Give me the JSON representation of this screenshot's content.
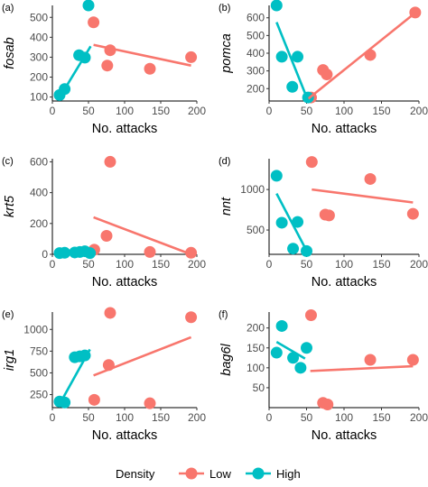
{
  "legend": {
    "title": "Density",
    "low_label": "Low",
    "high_label": "High"
  },
  "colors": {
    "low": "#F8766D",
    "high": "#00BFC4"
  },
  "chart_data": [
    {
      "type": "scatter",
      "tag": "(a)",
      "ylabel": "fosab",
      "xlabel": "No. attacks",
      "xlim": [
        0,
        200
      ],
      "xticks": [
        0,
        50,
        100,
        150,
        200
      ],
      "ylim": [
        80,
        560
      ],
      "yticks": [
        100,
        200,
        300,
        400,
        500
      ],
      "series": [
        {
          "name": "Low",
          "points": [
            [
              57,
              475
            ],
            [
              80,
              335
            ],
            [
              76,
              258
            ],
            [
              135,
              242
            ],
            [
              192,
              300
            ]
          ],
          "fit": [
            [
              57,
              362
            ],
            [
              192,
              258
            ]
          ]
        },
        {
          "name": "High",
          "points": [
            [
              10,
              110
            ],
            [
              17,
              140
            ],
            [
              37,
              310
            ],
            [
              45,
              298
            ],
            [
              50,
              560
            ]
          ],
          "fit": [
            [
              10,
              98
            ],
            [
              53,
              355
            ]
          ]
        }
      ]
    },
    {
      "type": "scatter",
      "tag": "(b)",
      "ylabel": "pomca",
      "xlabel": "No. attacks",
      "xlim": [
        0,
        200
      ],
      "xticks": [
        0,
        50,
        100,
        150,
        200
      ],
      "ylim": [
        130,
        670
      ],
      "yticks": [
        200,
        300,
        400,
        500,
        600
      ],
      "series": [
        {
          "name": "Low",
          "points": [
            [
              56,
              150
            ],
            [
              72,
              305
            ],
            [
              77,
              280
            ],
            [
              135,
              390
            ],
            [
              195,
              630
            ]
          ],
          "fit": [
            [
              52,
              142
            ],
            [
              195,
              628
            ]
          ]
        },
        {
          "name": "High",
          "points": [
            [
              10,
              670
            ],
            [
              17,
              380
            ],
            [
              31,
              210
            ],
            [
              38,
              380
            ],
            [
              52,
              150
            ]
          ],
          "fit": [
            [
              10,
              575
            ],
            [
              52,
              132
            ]
          ]
        }
      ]
    },
    {
      "type": "scatter",
      "tag": "(c)",
      "ylabel": "krt5",
      "xlabel": "No. attacks",
      "xlim": [
        0,
        200
      ],
      "xticks": [
        0,
        50,
        100,
        150,
        200
      ],
      "ylim": [
        0,
        620
      ],
      "yticks": [
        0,
        200,
        400,
        600
      ],
      "series": [
        {
          "name": "Low",
          "points": [
            [
              58,
              30
            ],
            [
              75,
              120
            ],
            [
              80,
              600
            ],
            [
              135,
              15
            ],
            [
              192,
              10
            ]
          ],
          "fit": [
            [
              57,
              240
            ],
            [
              192,
              0
            ]
          ]
        },
        {
          "name": "High",
          "points": [
            [
              10,
              8
            ],
            [
              17,
              10
            ],
            [
              31,
              12
            ],
            [
              38,
              15
            ],
            [
              45,
              20
            ],
            [
              52,
              8
            ]
          ],
          "fit": [
            [
              10,
              0
            ],
            [
              52,
              22
            ]
          ]
        }
      ]
    },
    {
      "type": "scatter",
      "tag": "(d)",
      "ylabel": "nnt",
      "xlabel": "No. attacks",
      "xlim": [
        0,
        200
      ],
      "xticks": [
        0,
        50,
        100,
        150,
        200
      ],
      "ylim": [
        200,
        1380
      ],
      "yticks": [
        500,
        1000
      ],
      "series": [
        {
          "name": "Low",
          "points": [
            [
              57,
              1340
            ],
            [
              75,
              690
            ],
            [
              80,
              680
            ],
            [
              135,
              1130
            ],
            [
              192,
              700
            ]
          ],
          "fit": [
            [
              57,
              1000
            ],
            [
              192,
              840
            ]
          ]
        },
        {
          "name": "High",
          "points": [
            [
              10,
              1170
            ],
            [
              17,
              590
            ],
            [
              32,
              270
            ],
            [
              38,
              600
            ],
            [
              50,
              240
            ]
          ],
          "fit": [
            [
              10,
              950
            ],
            [
              52,
              210
            ]
          ]
        }
      ]
    },
    {
      "type": "scatter",
      "tag": "(e)",
      "ylabel": "irg1",
      "xlabel": "No. attacks",
      "xlim": [
        0,
        200
      ],
      "xticks": [
        0,
        50,
        100,
        150,
        200
      ],
      "ylim": [
        100,
        1200
      ],
      "yticks": [
        250,
        500,
        750,
        1000
      ],
      "series": [
        {
          "name": "Low",
          "points": [
            [
              58,
              190
            ],
            [
              78,
              590
            ],
            [
              80,
              1190
            ],
            [
              135,
              150
            ],
            [
              192,
              1140
            ]
          ],
          "fit": [
            [
              57,
              470
            ],
            [
              192,
              910
            ]
          ]
        },
        {
          "name": "High",
          "points": [
            [
              10,
              170
            ],
            [
              17,
              160
            ],
            [
              31,
              680
            ],
            [
              38,
              690
            ],
            [
              45,
              700
            ]
          ],
          "fit": [
            [
              10,
              140
            ],
            [
              52,
              770
            ]
          ]
        }
      ]
    },
    {
      "type": "scatter",
      "tag": "(f)",
      "ylabel": "bag6l",
      "xlabel": "No. attacks",
      "xlim": [
        0,
        200
      ],
      "xticks": [
        0,
        50,
        100,
        150,
        200
      ],
      "ylim": [
        0,
        240
      ],
      "yticks": [
        50,
        100,
        150,
        200
      ],
      "series": [
        {
          "name": "Low",
          "points": [
            [
              56,
              232
            ],
            [
              72,
              12
            ],
            [
              78,
              8
            ],
            [
              135,
              120
            ],
            [
              192,
              120
            ]
          ],
          "fit": [
            [
              55,
              92
            ],
            [
              192,
              104
            ]
          ]
        },
        {
          "name": "High",
          "points": [
            [
              10,
              138
            ],
            [
              17,
              205
            ],
            [
              32,
              125
            ],
            [
              42,
              100
            ],
            [
              50,
              150
            ]
          ],
          "fit": [
            [
              10,
              165
            ],
            [
              48,
              123
            ]
          ]
        }
      ]
    }
  ]
}
